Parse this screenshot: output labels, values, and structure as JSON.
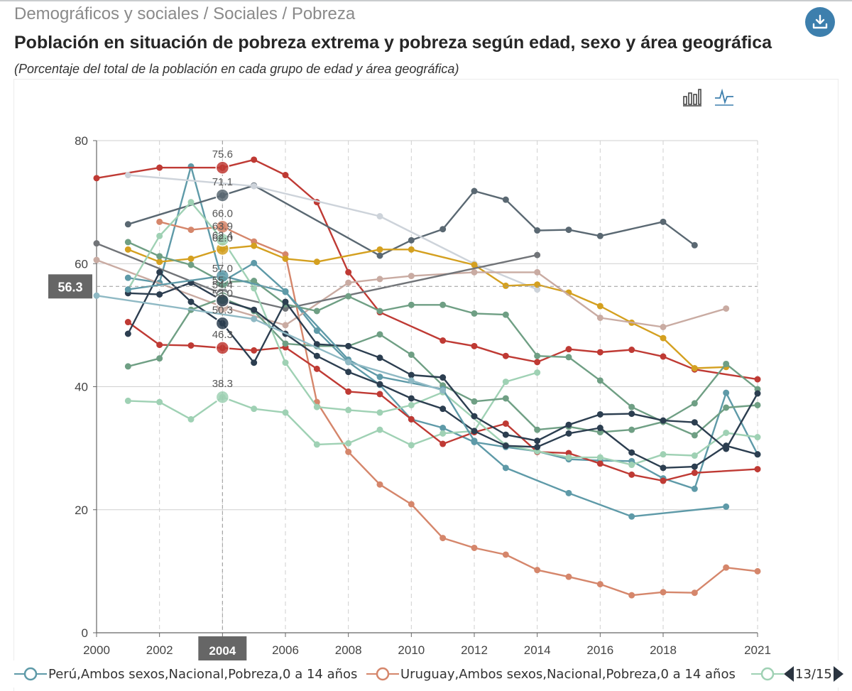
{
  "breadcrumb": "Demográficos y sociales / Sociales / Pobreza",
  "download_icon": "download-icon",
  "title": "Población en situación de pobreza extrema y pobreza según edad, sexo y área geográfica",
  "subtitle": "(Porcentaje del total de la población en cada grupo de edad y área geográfica)",
  "toolbar": {
    "bar_icon": "bar-chart-icon",
    "line_icon": "line-chart-icon"
  },
  "legend": {
    "items": [
      {
        "label": "Perú,Ambos sexos,Nacional,Pobreza,0 a 14 años",
        "color": "#5e9aa8"
      },
      {
        "label": "Uruguay,Ambos sexos,Nacional,Pobreza,0 a 14 años",
        "color": "#d5866b"
      },
      {
        "label": "",
        "color": "#9fd1b4"
      }
    ],
    "page": "13/15"
  },
  "tooltip": {
    "x": 2004,
    "axis_value": "56.3",
    "labels": [
      "75.6",
      "71.1",
      "66.0",
      "63.9",
      "62.0",
      "62.4",
      "57.0",
      "55.1",
      "54.4",
      "53.0",
      "50.3",
      "46.3",
      "38.3"
    ]
  },
  "chart_data": {
    "type": "line",
    "xlim": [
      2000,
      2021
    ],
    "ylim": [
      0,
      80
    ],
    "x_ticks": [
      "2000",
      "2002",
      "2004",
      "2006",
      "2008",
      "2010",
      "2012",
      "2014",
      "2016",
      "2018",
      "2021"
    ],
    "y_ticks": [
      "0",
      "20",
      "40",
      "60",
      "80"
    ],
    "grid": true,
    "legend_position": "bottom",
    "series": [
      {
        "name": "Perú,Ambos sexos,Nacional,Pobreza,0 a 14 años",
        "color": "#5e9aa8",
        "points": [
          [
            2001,
            57.7
          ],
          [
            2002,
            56.9
          ],
          [
            2003,
            75.8
          ],
          [
            2004,
            57.1
          ],
          [
            2005,
            60.1
          ],
          [
            2006,
            55.5
          ],
          [
            2007,
            49.1
          ],
          [
            2008,
            44.0
          ],
          [
            2009,
            40.3
          ],
          [
            2010,
            34.7
          ],
          [
            2011,
            33.3
          ],
          [
            2012,
            31.0
          ],
          [
            2013,
            30.2
          ],
          [
            2014,
            29.5
          ],
          [
            2015,
            28.2
          ],
          [
            2016,
            28.0
          ],
          [
            2017,
            27.9
          ],
          [
            2018,
            25.1
          ],
          [
            2019,
            23.4
          ],
          [
            2020,
            39.0
          ],
          [
            2021,
            29.0
          ]
        ]
      },
      {
        "name": "Uruguay,Ambos sexos,Nacional,Pobreza,0 a 14 años",
        "color": "#d5866b",
        "points": [
          [
            2002,
            66.8
          ],
          [
            2003,
            65.5
          ],
          [
            2004,
            66.0
          ],
          [
            2005,
            63.6
          ],
          [
            2006,
            61.5
          ],
          [
            2007,
            37.5
          ],
          [
            2008,
            29.4
          ],
          [
            2009,
            24.1
          ],
          [
            2010,
            20.9
          ],
          [
            2011,
            15.4
          ],
          [
            2012,
            13.8
          ],
          [
            2013,
            12.7
          ],
          [
            2014,
            10.2
          ],
          [
            2015,
            9.1
          ],
          [
            2016,
            7.9
          ],
          [
            2017,
            6.1
          ],
          [
            2018,
            6.6
          ],
          [
            2019,
            6.5
          ],
          [
            2020,
            10.6
          ],
          [
            2021,
            10.0
          ]
        ]
      },
      {
        "color": "#9fd1b4",
        "points": [
          [
            2001,
            37.7
          ],
          [
            2002,
            37.5
          ],
          [
            2003,
            34.7
          ],
          [
            2004,
            38.3
          ],
          [
            2005,
            36.4
          ],
          [
            2006,
            35.8
          ],
          [
            2007,
            30.6
          ],
          [
            2008,
            30.8
          ],
          [
            2009,
            33.0
          ],
          [
            2010,
            30.5
          ],
          [
            2011,
            32.4
          ],
          [
            2012,
            32.8
          ],
          [
            2013,
            40.8
          ],
          [
            2014,
            42.3
          ]
        ]
      },
      {
        "color": "#bf3a34",
        "points": [
          [
            2000,
            73.9
          ],
          [
            2002,
            75.6
          ],
          [
            2004,
            75.6
          ],
          [
            2005,
            76.9
          ],
          [
            2006,
            74.4
          ],
          [
            2007,
            70.0
          ],
          [
            2008,
            58.6
          ],
          [
            2009,
            52.1
          ],
          [
            2011,
            47.5
          ],
          [
            2012,
            46.6
          ],
          [
            2013,
            45.0
          ],
          [
            2014,
            44.0
          ],
          [
            2015,
            46.1
          ],
          [
            2016,
            45.6
          ],
          [
            2017,
            46.0
          ],
          [
            2018,
            44.9
          ],
          [
            2019,
            42.8
          ],
          [
            2021,
            41.2
          ]
        ]
      },
      {
        "color": "#bf3a34",
        "points": [
          [
            2001,
            50.5
          ],
          [
            2002,
            46.8
          ],
          [
            2003,
            46.7
          ],
          [
            2004,
            46.3
          ],
          [
            2005,
            45.9
          ],
          [
            2006,
            46.4
          ],
          [
            2007,
            42.9
          ],
          [
            2008,
            39.2
          ],
          [
            2009,
            38.8
          ],
          [
            2010,
            34.7
          ],
          [
            2011,
            30.7
          ],
          [
            2012,
            32.6
          ],
          [
            2013,
            34.0
          ],
          [
            2014,
            29.4
          ],
          [
            2015,
            29.2
          ],
          [
            2016,
            27.5
          ],
          [
            2017,
            25.7
          ],
          [
            2018,
            24.7
          ],
          [
            2019,
            26.0
          ],
          [
            2021,
            26.6
          ]
        ]
      },
      {
        "color": "#5a6872",
        "points": [
          [
            2001,
            66.4
          ],
          [
            2004,
            71.1
          ],
          [
            2005,
            72.7
          ],
          [
            2009,
            61.3
          ],
          [
            2010,
            63.8
          ],
          [
            2011,
            65.6
          ],
          [
            2012,
            71.8
          ],
          [
            2013,
            70.4
          ],
          [
            2014,
            65.4
          ],
          [
            2015,
            65.5
          ],
          [
            2016,
            64.5
          ],
          [
            2018,
            66.8
          ],
          [
            2019,
            63.0
          ]
        ]
      },
      {
        "color": "#cdd3da",
        "points": [
          [
            2001,
            74.4
          ],
          [
            2005,
            72.6
          ],
          [
            2009,
            67.7
          ],
          [
            2012,
            60.0
          ],
          [
            2014,
            55.8
          ]
        ]
      },
      {
        "color": "#d4a020",
        "points": [
          [
            2001,
            62.3
          ],
          [
            2002,
            60.3
          ],
          [
            2003,
            60.8
          ],
          [
            2004,
            62.4
          ],
          [
            2005,
            62.9
          ],
          [
            2006,
            60.8
          ],
          [
            2007,
            60.3
          ],
          [
            2009,
            62.3
          ],
          [
            2010,
            62.3
          ],
          [
            2012,
            59.8
          ],
          [
            2013,
            56.4
          ],
          [
            2014,
            56.6
          ],
          [
            2015,
            55.3
          ],
          [
            2016,
            53.1
          ],
          [
            2017,
            50.4
          ],
          [
            2018,
            47.9
          ],
          [
            2019,
            43.0
          ],
          [
            2020,
            43.2
          ]
        ]
      },
      {
        "color": "#c9aba2",
        "points": [
          [
            2000,
            60.6
          ],
          [
            2004,
            53.0
          ],
          [
            2006,
            50.0
          ],
          [
            2008,
            56.9
          ],
          [
            2009,
            57.5
          ],
          [
            2010,
            58.0
          ],
          [
            2012,
            58.6
          ],
          [
            2014,
            58.6
          ],
          [
            2016,
            51.2
          ],
          [
            2018,
            49.7
          ],
          [
            2020,
            52.7
          ]
        ]
      },
      {
        "color": "#717478",
        "points": [
          [
            2000,
            63.3
          ],
          [
            2004,
            55.1
          ],
          [
            2006,
            52.7
          ],
          [
            2014,
            61.4
          ]
        ]
      },
      {
        "color": "#6f9f84",
        "points": [
          [
            2001,
            63.5
          ],
          [
            2002,
            61.2
          ],
          [
            2003,
            59.8
          ],
          [
            2004,
            57.0
          ],
          [
            2005,
            57.2
          ],
          [
            2006,
            53.4
          ],
          [
            2007,
            52.3
          ],
          [
            2008,
            54.7
          ],
          [
            2009,
            52.3
          ],
          [
            2010,
            53.3
          ],
          [
            2011,
            53.3
          ],
          [
            2012,
            51.9
          ],
          [
            2013,
            51.7
          ],
          [
            2014,
            45.0
          ],
          [
            2015,
            44.8
          ],
          [
            2016,
            41.0
          ],
          [
            2017,
            36.7
          ],
          [
            2018,
            34.3
          ],
          [
            2019,
            37.3
          ],
          [
            2020,
            43.7
          ],
          [
            2021,
            39.6
          ]
        ]
      },
      {
        "color": "#6f9f84",
        "points": [
          [
            2001,
            43.3
          ],
          [
            2002,
            44.6
          ],
          [
            2003,
            52.5
          ],
          [
            2004,
            54.4
          ],
          [
            2005,
            52.3
          ],
          [
            2006,
            47.0
          ],
          [
            2007,
            46.6
          ],
          [
            2008,
            46.6
          ],
          [
            2009,
            48.5
          ],
          [
            2010,
            45.2
          ],
          [
            2011,
            40.2
          ],
          [
            2012,
            37.6
          ],
          [
            2013,
            38.1
          ],
          [
            2014,
            33.0
          ],
          [
            2015,
            33.5
          ],
          [
            2016,
            32.6
          ],
          [
            2017,
            33.0
          ],
          [
            2018,
            34.3
          ],
          [
            2019,
            32.1
          ],
          [
            2020,
            36.6
          ],
          [
            2021,
            37.0
          ]
        ]
      },
      {
        "color": "#9fd1b4",
        "points": [
          [
            2001,
            55.8
          ],
          [
            2002,
            64.5
          ],
          [
            2003,
            70.0
          ],
          [
            2004,
            63.9
          ],
          [
            2005,
            56.0
          ],
          [
            2006,
            43.9
          ],
          [
            2007,
            36.7
          ],
          [
            2008,
            36.2
          ],
          [
            2009,
            35.8
          ],
          [
            2010,
            37.0
          ],
          [
            2011,
            39.1
          ],
          [
            2013,
            30.5
          ],
          [
            2014,
            29.5
          ],
          [
            2015,
            28.5
          ],
          [
            2016,
            28.5
          ],
          [
            2017,
            27.3
          ],
          [
            2018,
            29.0
          ],
          [
            2019,
            28.8
          ],
          [
            2020,
            32.5
          ],
          [
            2021,
            31.8
          ]
        ]
      },
      {
        "color": "#2c3e50",
        "points": [
          [
            2001,
            48.6
          ],
          [
            2002,
            58.6
          ],
          [
            2003,
            53.8
          ],
          [
            2004,
            50.3
          ],
          [
            2005,
            43.9
          ],
          [
            2006,
            53.8
          ],
          [
            2007,
            46.9
          ],
          [
            2008,
            46.6
          ],
          [
            2009,
            44.7
          ],
          [
            2010,
            41.9
          ],
          [
            2011,
            41.5
          ],
          [
            2012,
            35.2
          ],
          [
            2013,
            32.2
          ],
          [
            2014,
            31.2
          ],
          [
            2015,
            33.8
          ],
          [
            2016,
            35.5
          ],
          [
            2017,
            35.6
          ],
          [
            2018,
            34.5
          ],
          [
            2019,
            34.2
          ],
          [
            2020,
            29.9
          ],
          [
            2021,
            38.9
          ]
        ]
      },
      {
        "color": "#2c3e50",
        "points": [
          [
            2001,
            55.2
          ],
          [
            2002,
            55.0
          ],
          [
            2003,
            56.9
          ],
          [
            2004,
            54.0
          ],
          [
            2005,
            52.5
          ],
          [
            2006,
            48.6
          ],
          [
            2007,
            45.0
          ],
          [
            2008,
            42.4
          ],
          [
            2009,
            40.4
          ],
          [
            2010,
            38.1
          ],
          [
            2011,
            36.4
          ],
          [
            2012,
            32.8
          ],
          [
            2013,
            30.4
          ],
          [
            2014,
            30.2
          ],
          [
            2015,
            32.4
          ],
          [
            2016,
            33.3
          ],
          [
            2017,
            29.3
          ],
          [
            2018,
            26.8
          ],
          [
            2019,
            27.0
          ],
          [
            2020,
            30.4
          ],
          [
            2021,
            29.0
          ]
        ]
      },
      {
        "color": "#5e9aa8",
        "points": [
          [
            2001,
            55.8
          ],
          [
            2004,
            58.0
          ],
          [
            2006,
            55.4
          ],
          [
            2008,
            44.4
          ],
          [
            2009,
            41.6
          ],
          [
            2011,
            39.6
          ],
          [
            2012,
            31.2
          ],
          [
            2013,
            26.8
          ],
          [
            2015,
            22.7
          ],
          [
            2017,
            18.9
          ],
          [
            2020,
            20.5
          ]
        ]
      },
      {
        "color": "#8fb9c4",
        "points": [
          [
            2000,
            54.8
          ],
          [
            2005,
            51.0
          ],
          [
            2008,
            44.0
          ],
          [
            2010,
            41.0
          ],
          [
            2011,
            39.4
          ]
        ]
      }
    ]
  }
}
